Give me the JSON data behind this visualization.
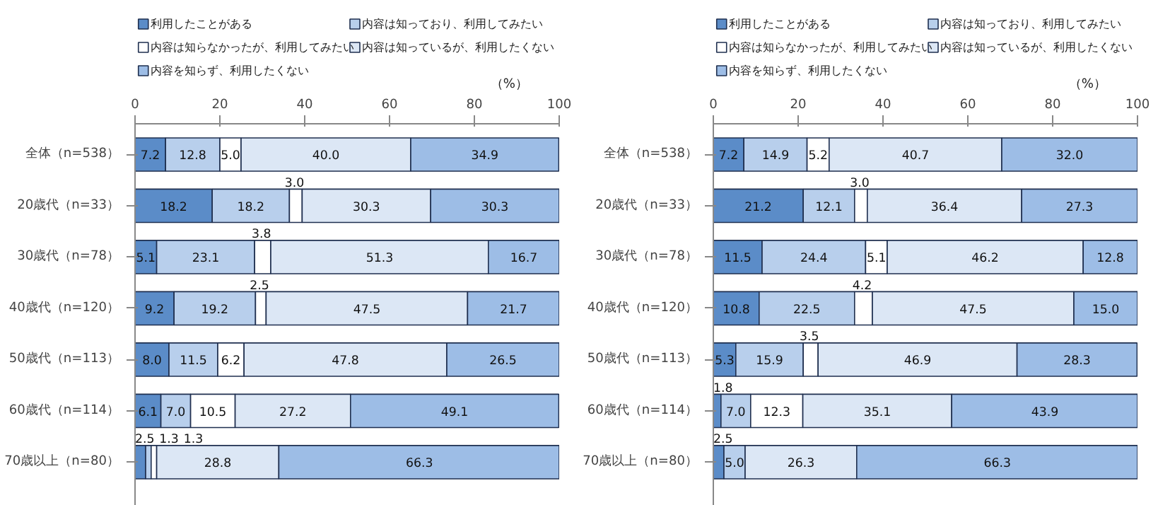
{
  "chart_data": [
    {
      "type": "bar",
      "orientation": "horizontal",
      "stacked": true,
      "legend": "top",
      "annotations": [
        "（%）"
      ],
      "categories": [
        "全体（n=538）",
        "20歳代（n=33）",
        "30歳代（n=78）",
        "40歳代（n=120）",
        "50歳代（n=113）",
        "60歳代（n=114）",
        "70歳以上（n=80）"
      ],
      "xlim": [
        0,
        100
      ],
      "xticks": [
        0,
        20,
        40,
        60,
        80,
        100
      ],
      "series": [
        {
          "name": "利用したことがある",
          "color": "#5b8cc8",
          "values": [
            7.2,
            18.2,
            5.1,
            9.2,
            8.0,
            6.1,
            2.5
          ],
          "value_labels": [
            "7.2",
            "18.2",
            "5.1",
            "9.2",
            "8.0",
            "6.1",
            "2.5"
          ]
        },
        {
          "name": "内容は知っており、利用してみたい",
          "color": "#b8cfec",
          "values": [
            12.8,
            18.2,
            23.1,
            19.2,
            11.5,
            7.0,
            1.3
          ],
          "value_labels": [
            "12.8",
            "18.2",
            "23.1",
            "19.2",
            "11.5",
            "7.0",
            "1.3"
          ]
        },
        {
          "name": "内容は知らなかったが、利用してみたい",
          "color": "#ffffff",
          "values": [
            5.0,
            3.0,
            3.8,
            2.5,
            6.2,
            10.5,
            1.3
          ],
          "value_labels": [
            "5.0",
            "3.0",
            "3.8",
            "2.5",
            "6.2",
            "10.5",
            "1.3"
          ]
        },
        {
          "name": "内容は知っているが、利用したくない",
          "color": "#dce7f5",
          "values": [
            40.0,
            30.3,
            51.3,
            47.5,
            47.8,
            27.2,
            28.8
          ],
          "value_labels": [
            "40.0",
            "30.3",
            "51.3",
            "47.5",
            "47.8",
            "27.2",
            "28.8"
          ]
        },
        {
          "name": "内容を知らず、利用したくない",
          "color": "#9dbde6",
          "values": [
            34.9,
            30.3,
            16.7,
            21.7,
            26.5,
            49.1,
            66.3
          ],
          "value_labels": [
            "34.9",
            "30.3",
            "16.7",
            "21.7",
            "26.5",
            "49.1",
            "66.3"
          ]
        }
      ]
    },
    {
      "type": "bar",
      "orientation": "horizontal",
      "stacked": true,
      "legend": "top",
      "annotations": [
        "（%）"
      ],
      "categories": [
        "全体（n=538）",
        "20歳代（n=33）",
        "30歳代（n=78）",
        "40歳代（n=120）",
        "50歳代（n=113）",
        "60歳代（n=114）",
        "70歳以上（n=80）"
      ],
      "xlim": [
        0,
        100
      ],
      "xticks": [
        0,
        20,
        40,
        60,
        80,
        100
      ],
      "series": [
        {
          "name": "利用したことがある",
          "color": "#5b8cc8",
          "values": [
            7.2,
            21.2,
            11.5,
            10.8,
            5.3,
            1.8,
            2.5
          ],
          "value_labels": [
            "7.2",
            "21.2",
            "11.5",
            "10.8",
            "5.3",
            "1.8",
            "2.5"
          ]
        },
        {
          "name": "内容は知っており、利用してみたい",
          "color": "#b8cfec",
          "values": [
            14.9,
            12.1,
            24.4,
            22.5,
            15.9,
            7.0,
            5.0
          ],
          "value_labels": [
            "14.9",
            "12.1",
            "24.4",
            "22.5",
            "15.9",
            "7.0",
            "5.0"
          ]
        },
        {
          "name": "内容は知らなかったが、利用してみたい",
          "color": "#ffffff",
          "values": [
            5.2,
            3.0,
            5.1,
            4.2,
            3.5,
            12.3,
            null
          ],
          "value_labels": [
            "5.2",
            "3.0",
            "5.1",
            "4.2",
            "3.5",
            "12.3",
            null
          ]
        },
        {
          "name": "内容は知っているが、利用したくない",
          "color": "#dce7f5",
          "values": [
            40.7,
            36.4,
            46.2,
            47.5,
            46.9,
            35.1,
            26.3
          ],
          "value_labels": [
            "40.7",
            "36.4",
            "46.2",
            "47.5",
            "46.9",
            "35.1",
            "26.3"
          ]
        },
        {
          "name": "内容を知らず、利用したくない",
          "color": "#9dbde6",
          "values": [
            32.0,
            27.3,
            12.8,
            15.0,
            28.3,
            43.9,
            66.3
          ],
          "value_labels": [
            "32.0",
            "27.3",
            "12.8",
            "15.0",
            "28.3",
            "43.9",
            "66.3"
          ]
        }
      ]
    }
  ]
}
